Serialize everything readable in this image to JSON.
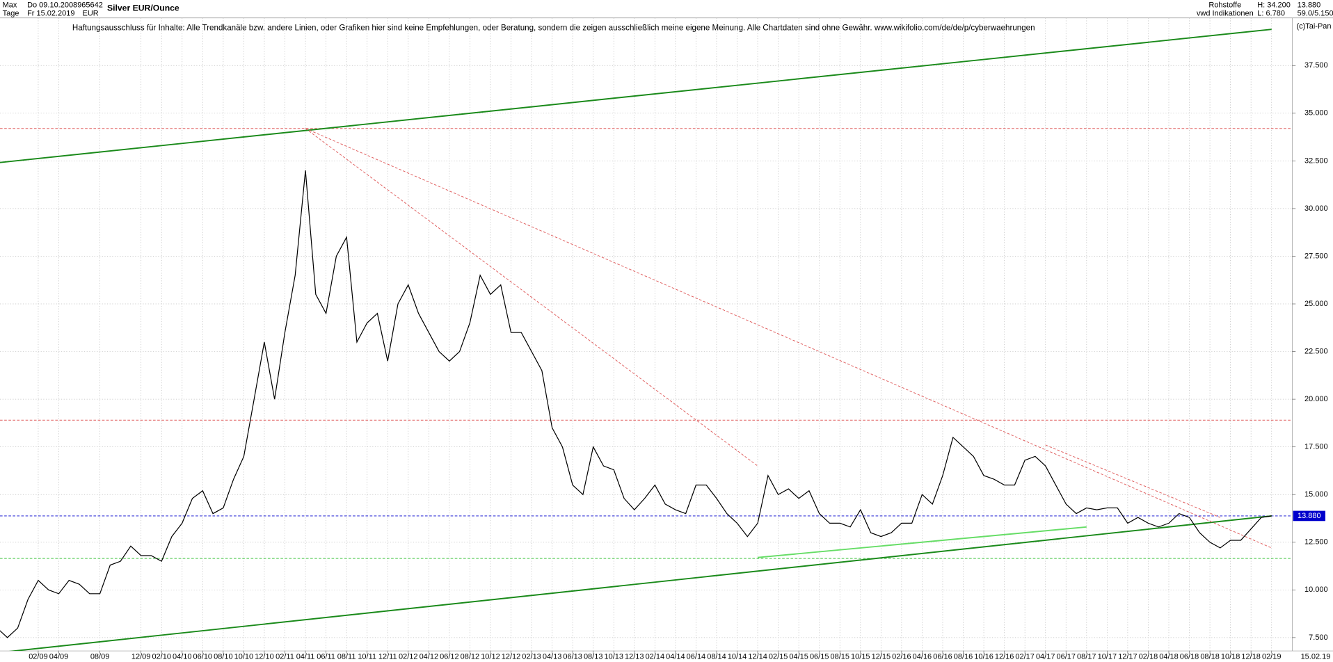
{
  "chart_data": {
    "type": "line",
    "title": "Silver EUR/Ounce",
    "header": {
      "range": "Max",
      "unit_mode": "Tage",
      "from": "Do 09.10.2008",
      "to": "Fr 15.02.2019",
      "id": "965642",
      "currency": "EUR",
      "disclaimer": "Haftungsausschluss für Inhalte: Alle Trendkanäle bzw. andere Linien, oder Grafiken hier sind keine Empfehlungen, oder Beratung, sondern die zeigen ausschließlich meine eigene Meinung. Alle Chartdaten sind ohne Gewähr.  www.wikifolio.com/de/de/p/cyberwaehrungen",
      "source": "Rohstoffe",
      "provider": "vwd Indikationen",
      "high": "H: 34.200",
      "low": "L: 6.780",
      "last": "13.880",
      "range2": "59.0/5.150",
      "copyright": "(c)Tai-Pan"
    },
    "x": [
      "10/08",
      "11/08",
      "12/08",
      "01/09",
      "02/09",
      "03/09",
      "04/09",
      "05/09",
      "06/09",
      "07/09",
      "08/09",
      "09/09",
      "10/09",
      "11/09",
      "12/09",
      "01/10",
      "02/10",
      "03/10",
      "04/10",
      "05/10",
      "06/10",
      "07/10",
      "08/10",
      "09/10",
      "10/10",
      "11/10",
      "12/10",
      "01/11",
      "02/11",
      "03/11",
      "04/11",
      "05/11",
      "06/11",
      "07/11",
      "08/11",
      "09/11",
      "10/11",
      "11/11",
      "12/11",
      "01/12",
      "02/12",
      "03/12",
      "04/12",
      "05/12",
      "06/12",
      "07/12",
      "08/12",
      "09/12",
      "10/12",
      "11/12",
      "12/12",
      "01/13",
      "02/13",
      "03/13",
      "04/13",
      "05/13",
      "06/13",
      "07/13",
      "08/13",
      "09/13",
      "10/13",
      "11/13",
      "12/13",
      "01/14",
      "02/14",
      "03/14",
      "04/14",
      "05/14",
      "06/14",
      "07/14",
      "08/14",
      "09/14",
      "10/14",
      "11/14",
      "12/14",
      "01/15",
      "02/15",
      "03/15",
      "04/15",
      "05/15",
      "06/15",
      "07/15",
      "08/15",
      "09/15",
      "10/15",
      "11/15",
      "12/15",
      "01/16",
      "02/16",
      "03/16",
      "04/16",
      "05/16",
      "06/16",
      "07/16",
      "08/16",
      "09/16",
      "10/16",
      "11/16",
      "12/16",
      "01/17",
      "02/17",
      "03/17",
      "04/17",
      "05/17",
      "06/17",
      "07/17",
      "08/17",
      "09/17",
      "10/17",
      "11/17",
      "12/17",
      "01/18",
      "02/18",
      "03/18",
      "04/18",
      "05/18",
      "06/18",
      "07/18",
      "08/18",
      "09/18",
      "10/18",
      "11/18",
      "12/18",
      "01/19",
      "02/19"
    ],
    "series": [
      {
        "color": "#000000",
        "values": [
          8.0,
          7.5,
          8.0,
          9.5,
          10.5,
          10.0,
          9.8,
          10.5,
          10.3,
          9.8,
          9.8,
          11.3,
          11.5,
          12.3,
          11.8,
          11.8,
          11.5,
          12.8,
          13.5,
          14.8,
          15.2,
          14.0,
          14.3,
          15.8,
          17.0,
          20.0,
          23.0,
          20.0,
          23.5,
          26.5,
          32.0,
          25.5,
          24.5,
          27.5,
          28.5,
          23.0,
          24.0,
          24.5,
          22.0,
          25.0,
          26.0,
          24.5,
          23.5,
          22.5,
          22.0,
          22.5,
          24.0,
          26.5,
          25.5,
          26.0,
          23.5,
          23.5,
          22.5,
          21.5,
          18.5,
          17.5,
          15.5,
          15.0,
          17.5,
          16.5,
          16.3,
          14.8,
          14.2,
          14.8,
          15.5,
          14.5,
          14.2,
          14.0,
          15.5,
          15.5,
          14.8,
          14.0,
          13.5,
          12.8,
          13.5,
          16.0,
          15.0,
          15.3,
          14.8,
          15.2,
          14.0,
          13.5,
          13.5,
          13.3,
          14.2,
          13.0,
          12.8,
          13.0,
          13.5,
          13.5,
          15.0,
          14.5,
          16.0,
          18.0,
          17.5,
          17.0,
          16.0,
          15.8,
          15.5,
          15.5,
          16.8,
          17.0,
          16.5,
          15.5,
          14.5,
          14.0,
          14.3,
          14.2,
          14.3,
          14.3,
          13.5,
          13.8,
          13.5,
          13.3,
          13.5,
          14.0,
          13.8,
          13.0,
          12.5,
          12.2,
          12.6,
          12.6,
          13.2,
          13.8,
          13.88
        ]
      }
    ],
    "xticks": [
      "02/09",
      "04/09",
      "08/09",
      "12/09",
      "02/10",
      "04/10",
      "06/10",
      "08/10",
      "10/10",
      "12/10",
      "02/11",
      "04/11",
      "06/11",
      "08/11",
      "10/11",
      "12/11",
      "02/12",
      "04/12",
      "06/12",
      "08/12",
      "10/12",
      "12/12",
      "02/13",
      "04/13",
      "06/13",
      "08/13",
      "10/13",
      "12/13",
      "02/14",
      "04/14",
      "06/14",
      "08/14",
      "10/14",
      "12/14",
      "02/15",
      "04/15",
      "06/15",
      "08/15",
      "10/15",
      "12/15",
      "02/16",
      "04/16",
      "06/16",
      "08/16",
      "10/16",
      "12/16",
      "02/17",
      "04/17",
      "06/17",
      "08/17",
      "10/17",
      "12/17",
      "02/18",
      "04/18",
      "06/18",
      "08/18",
      "10/18",
      "12/18",
      "02/19"
    ],
    "end_date_label": "15.02.19",
    "ylim": [
      6.8,
      40
    ],
    "yticks": [
      {
        "value": 7.5,
        "label": "7.500"
      },
      {
        "value": 10,
        "label": "10.000"
      },
      {
        "value": 12.5,
        "label": "12.500"
      },
      {
        "value": 15,
        "label": "15.000"
      },
      {
        "value": 17.5,
        "label": "17.500"
      },
      {
        "value": 20,
        "label": "20.000"
      },
      {
        "value": 22.5,
        "label": "22.500"
      },
      {
        "value": 25,
        "label": "25.000"
      },
      {
        "value": 27.5,
        "label": "27.500"
      },
      {
        "value": 30,
        "label": "30.000"
      },
      {
        "value": 32.5,
        "label": "32.500"
      },
      {
        "value": 35,
        "label": "35.000"
      },
      {
        "value": 37.5,
        "label": "37.500"
      }
    ],
    "grid": true,
    "last_price": {
      "value": 13.88,
      "label": "13.880",
      "color": "#0000cc"
    },
    "hlines": [
      {
        "value": 34.2,
        "color": "#e06060",
        "dash": true
      },
      {
        "value": 18.9,
        "color": "#e06060",
        "dash": true
      },
      {
        "value": 13.88,
        "color": "#0000cc",
        "dash": true
      },
      {
        "value": 11.65,
        "color": "#22bb22",
        "dash": true
      }
    ],
    "trend_lines": [
      {
        "x": [
          "10/08",
          "02/19"
        ],
        "values": [
          32.4,
          39.4
        ],
        "color": "#1a8a1a",
        "dash": false
      },
      {
        "x": [
          "10/08",
          "02/19"
        ],
        "values": [
          6.7,
          13.88
        ],
        "color": "#1a8a1a",
        "dash": false
      },
      {
        "x": [
          "04/11",
          "12/14"
        ],
        "values": [
          34.2,
          16.5
        ],
        "color": "#e06060",
        "dash": true
      },
      {
        "x": [
          "04/11",
          "02/19"
        ],
        "values": [
          34.2,
          12.2
        ],
        "color": "#e06060",
        "dash": true
      },
      {
        "x": [
          "04/17",
          "09/18"
        ],
        "values": [
          17.6,
          13.8
        ],
        "color": "#e06060",
        "dash": true
      },
      {
        "x": [
          "12/14",
          "08/17"
        ],
        "values": [
          11.7,
          13.3
        ],
        "color": "#66dd66",
        "dash": false
      }
    ]
  }
}
